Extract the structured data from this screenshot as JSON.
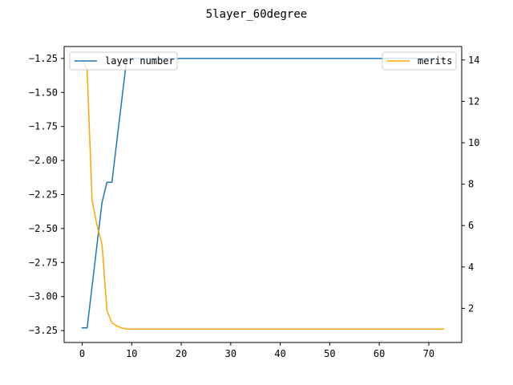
{
  "chart_data": {
    "type": "line",
    "title": "5layer_60degree",
    "xlabel": "",
    "ylabel_left": "",
    "ylabel_right": "",
    "x_ticks": [
      0,
      10,
      20,
      30,
      40,
      50,
      60,
      70
    ],
    "xlim": [
      -3.65,
      76.65
    ],
    "left_axis": {
      "ylim": [
        -3.3375,
        -1.1625
      ],
      "ticks": [
        -3.25,
        -3.0,
        -2.75,
        -2.5,
        -2.25,
        -2.0,
        -1.75,
        -1.5,
        -1.25
      ],
      "tick_labels": [
        "−3.25",
        "−3.00",
        "−2.75",
        "−2.50",
        "−2.25",
        "−2.00",
        "−1.75",
        "−1.50",
        "−1.25"
      ]
    },
    "right_axis": {
      "ylim": [
        0.35,
        14.65
      ],
      "ticks": [
        2,
        4,
        6,
        8,
        10,
        12,
        14
      ],
      "tick_labels": [
        "2",
        "4",
        "6",
        "8",
        "10",
        "12",
        "14"
      ]
    },
    "series": [
      {
        "name": "layer number",
        "axis": "left",
        "color": "#1f77b4",
        "points": [
          [
            0,
            -3.23
          ],
          [
            1,
            -3.23
          ],
          [
            4,
            -2.31
          ],
          [
            5,
            -2.16
          ],
          [
            6,
            -2.16
          ],
          [
            9,
            -1.25
          ],
          [
            73,
            -1.25
          ]
        ]
      },
      {
        "name": "merits",
        "axis": "right",
        "color": "#ffa500",
        "points": [
          [
            0,
            14
          ],
          [
            1,
            13.5
          ],
          [
            2,
            7.2
          ],
          [
            3,
            6.0
          ],
          [
            4,
            5.1
          ],
          [
            5,
            1.9
          ],
          [
            6,
            1.3
          ],
          [
            7,
            1.15
          ],
          [
            8,
            1.05
          ],
          [
            9,
            1.0
          ],
          [
            20,
            1.0
          ],
          [
            40,
            1.0
          ],
          [
            60,
            1.0
          ],
          [
            73,
            1.0
          ]
        ]
      }
    ],
    "legends": [
      {
        "entries": [
          "layer number"
        ],
        "placement": "upper left"
      },
      {
        "entries": [
          "merits"
        ],
        "placement": "upper right"
      }
    ]
  }
}
